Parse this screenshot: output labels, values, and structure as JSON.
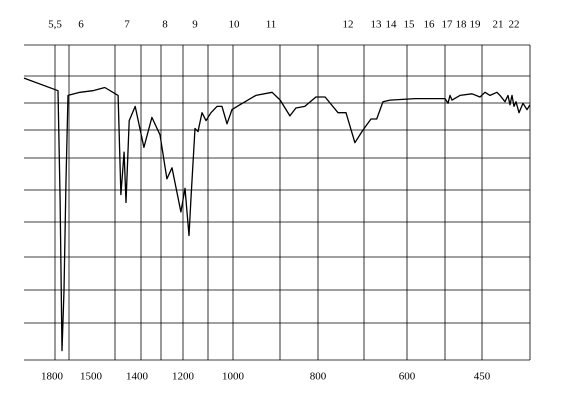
{
  "chart_data": {
    "type": "line",
    "color": "#000000",
    "x": [
      2015,
      1754,
      1738,
      1723,
      1708,
      1692,
      1677,
      1585,
      1496,
      1470,
      1441,
      1435,
      1428,
      1424,
      1417,
      1404,
      1370,
      1335,
      1300,
      1270,
      1248,
      1209,
      1192,
      1176,
      1168,
      1152,
      1140,
      1124,
      1108,
      1088,
      1064,
      1044,
      1024,
      1004,
      984,
      946,
      908,
      889,
      866,
      852,
      831,
      805,
      784,
      755,
      737,
      717,
      699,
      681,
      668,
      654,
      638,
      584,
      524,
      518,
      514,
      510,
      494,
      470,
      454,
      444,
      434,
      420,
      414,
      404,
      398,
      394,
      390,
      386,
      382,
      376,
      368,
      360,
      354
    ],
    "values": [
      89.5,
      85.5,
      51,
      3,
      22,
      57,
      84,
      85,
      85.5,
      86.5,
      84,
      52.5,
      66,
      50,
      76,
      80.5,
      67.5,
      77,
      71.5,
      57.5,
      61,
      47,
      54.5,
      39.5,
      51.5,
      73.5,
      72.5,
      78.5,
      76,
      78.5,
      80.5,
      80.5,
      75,
      79.5,
      81,
      84,
      85,
      82.5,
      77.5,
      80,
      80.5,
      83.5,
      83.5,
      78.5,
      78.5,
      69,
      73,
      76.5,
      76.5,
      82,
      82.5,
      83,
      83,
      81.5,
      84,
      82.5,
      84,
      84.5,
      83.5,
      85,
      84,
      85,
      84,
      82,
      84,
      81,
      84,
      80.5,
      82,
      78.5,
      81.5,
      79.5,
      81
    ],
    "xlim": [
      2015,
      354
    ],
    "ylim": [
      0,
      100
    ],
    "xticks": [
      1800,
      1500,
      1400,
      1200,
      1000,
      800,
      600,
      450
    ],
    "x2ticks": [
      {
        "value": 5.5,
        "label": "5,5"
      },
      6,
      7,
      8,
      9,
      10,
      11,
      12,
      13,
      14,
      15,
      16,
      17,
      18,
      19,
      21,
      22
    ],
    "grid": true
  }
}
